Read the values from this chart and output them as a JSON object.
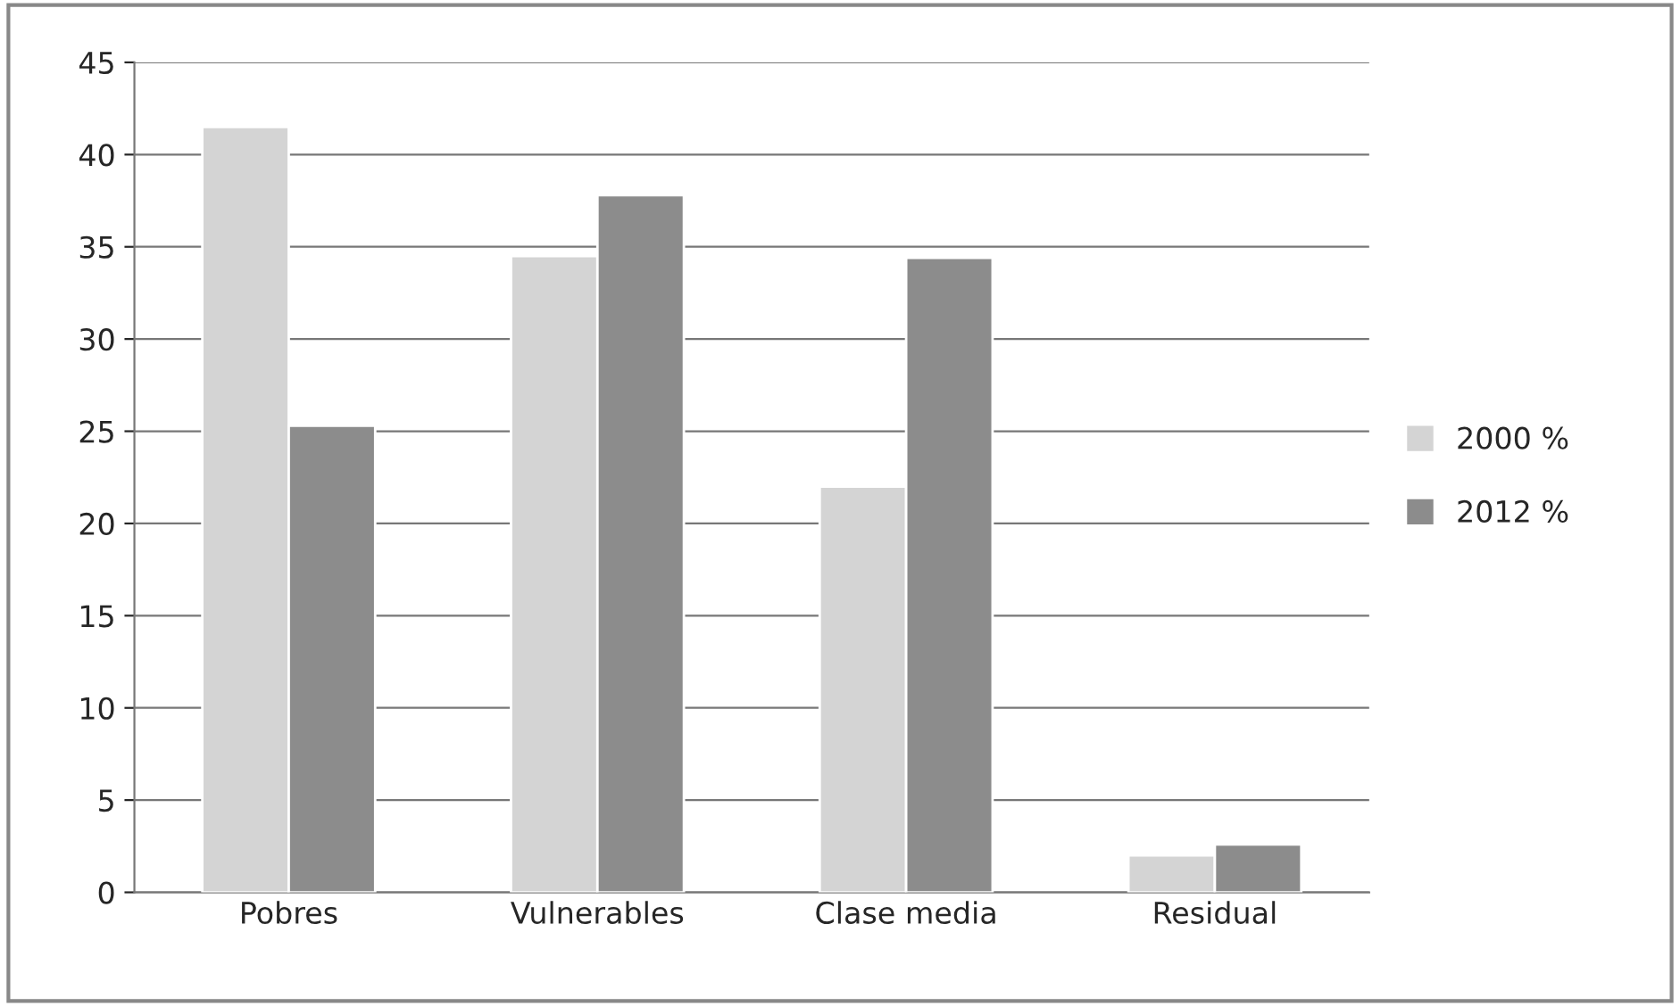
{
  "chart_data": {
    "type": "bar",
    "categories": [
      "Pobres",
      "Vulnerables",
      "Clase media",
      "Residual"
    ],
    "series": [
      {
        "name": "2000 %",
        "color": "#d4d4d4",
        "values": [
          41.5,
          34.5,
          22,
          2
        ]
      },
      {
        "name": "2012 %",
        "color": "#8c8c8c",
        "values": [
          25.3,
          37.8,
          34.4,
          2.6
        ]
      }
    ],
    "ylim": [
      0,
      45
    ],
    "yticks": [
      0,
      5,
      10,
      15,
      20,
      25,
      30,
      35,
      40,
      45
    ],
    "grid": "y",
    "legend": "right"
  }
}
